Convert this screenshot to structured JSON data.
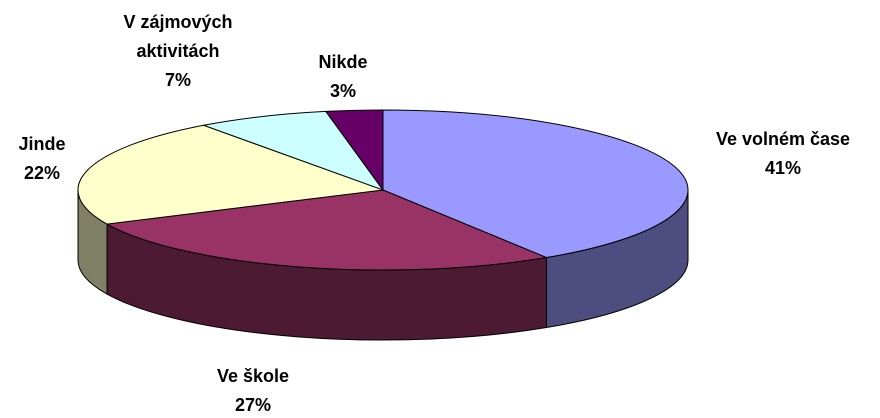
{
  "chart_data": {
    "type": "pie3d",
    "categories": [
      "Ve volném čase",
      "Ve škole",
      "Jinde",
      "V zájmových aktivitách",
      "Nikde"
    ],
    "values": [
      41,
      27,
      22,
      7,
      3
    ],
    "value_labels": [
      "41%",
      "27%",
      "22%",
      "7%",
      "3%"
    ],
    "colors": [
      "#9999ff",
      "#993366",
      "#ffffcc",
      "#ccffff",
      "#660066"
    ]
  }
}
